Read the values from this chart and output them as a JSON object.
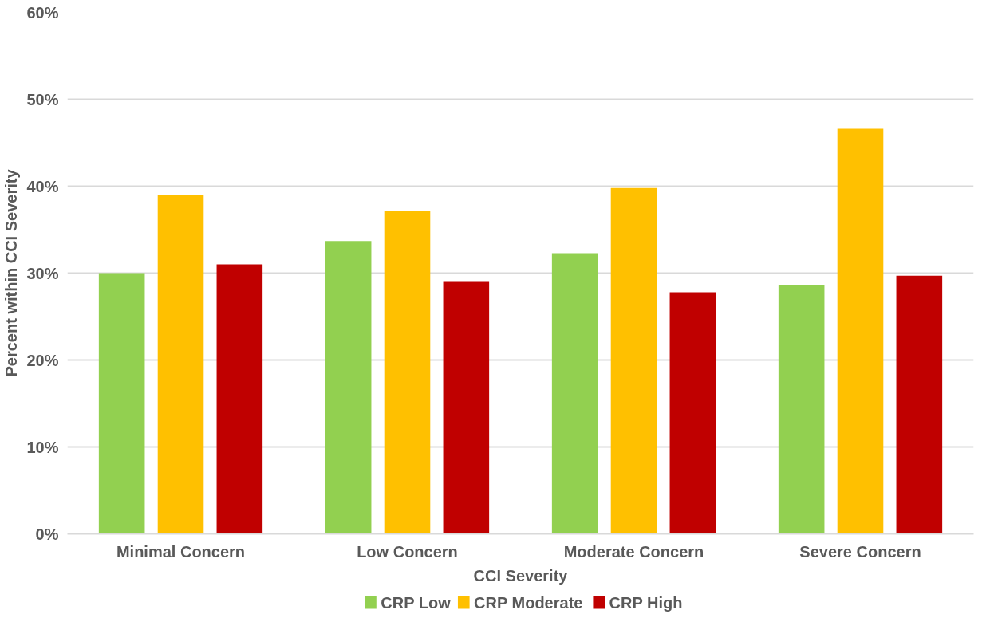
{
  "chart_data": {
    "type": "bar",
    "xlabel": "CCI Severity",
    "ylabel": "Percent within CCI Severity",
    "categories": [
      "Minimal Concern",
      "Low Concern",
      "Moderate Concern",
      "Severe Concern"
    ],
    "series": [
      {
        "name": "CRP Low",
        "color": "#92d050",
        "values": [
          30.0,
          33.7,
          32.3,
          28.6
        ]
      },
      {
        "name": "CRP Moderate",
        "color": "#ffc000",
        "values": [
          39.0,
          37.2,
          39.8,
          46.6
        ]
      },
      {
        "name": "CRP High",
        "color": "#c00000",
        "values": [
          31.0,
          29.0,
          27.8,
          29.7
        ]
      }
    ],
    "ylim": [
      0,
      60
    ],
    "yticks": [
      {
        "value": 0,
        "label": "0%"
      },
      {
        "value": 10,
        "label": "10%"
      },
      {
        "value": 20,
        "label": "20%"
      },
      {
        "value": 30,
        "label": "30%"
      },
      {
        "value": 40,
        "label": "40%"
      },
      {
        "value": 50,
        "label": "50%"
      },
      {
        "value": 60,
        "label": "60%"
      }
    ],
    "grid": "y",
    "legend": "bottom"
  }
}
